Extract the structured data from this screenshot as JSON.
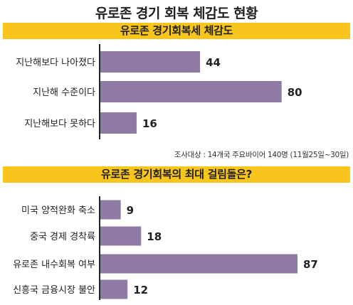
{
  "title": "유로존 경기 회복 체감도 현황",
  "source_note": "조사대상 : 14개국 주요바이어 140명 (11월25일~30일)",
  "colors": {
    "bar": "#8f7aa3",
    "banner": "#f7c51c",
    "axis": "#222222"
  },
  "chart_data": [
    {
      "type": "bar",
      "orientation": "horizontal",
      "title": "유로존 경기회복세 체감도",
      "categories": [
        "지난해보다 나아졌다",
        "지난해 수준이다",
        "지난해보다 못하다"
      ],
      "values": [
        44,
        80,
        16
      ],
      "xlim": [
        0,
        87
      ],
      "grid": false,
      "legend": "none"
    },
    {
      "type": "bar",
      "orientation": "horizontal",
      "title": "유로존 경기회복의 최대 걸림돌은?",
      "categories": [
        "미국 양적완화 축소",
        "중국 경제 경착륙",
        "유로존 내수회복 여부",
        "신흥국 금융시장 불안"
      ],
      "values": [
        9,
        18,
        87,
        12
      ],
      "xlim": [
        0,
        87
      ],
      "grid": false,
      "legend": "none"
    }
  ]
}
